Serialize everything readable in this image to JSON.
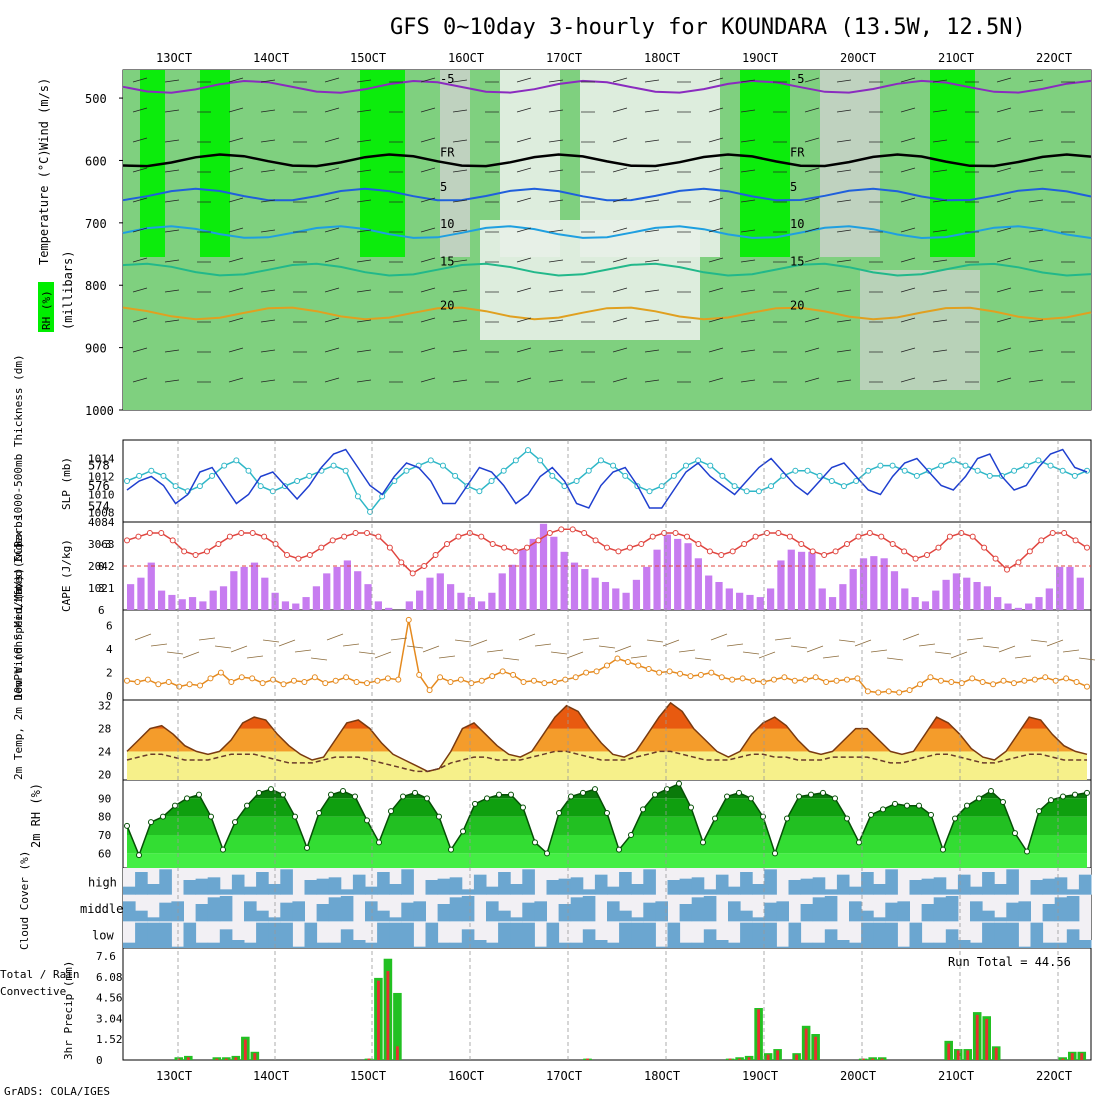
{
  "title": "GFS 0~10day 3-hourly for KOUNDARA (13.5W, 12.5N)",
  "footer": "GrADS: COLA/IGES",
  "colors": {
    "rh_dark": "#00ee00",
    "rh_mid": "#5fd05f",
    "rh_light": "#7fd07f",
    "rh_grey": "#c7d2c7",
    "rh_pale": "#e8efe8",
    "slp": "#1f3fcf",
    "thickness": "#2fb7c7",
    "cape": "#c77cf0",
    "lifted": "#e0453f",
    "wind": "#e58a1f",
    "barb": "#8b6a3a",
    "temp_hi": "#e85a10",
    "temp_mid": "#f6a830",
    "temp_lo": "#f6f08a",
    "rh2m_dark": "#0a8f0a",
    "rh2m_light": "#44ee44",
    "cloud": "#6ba6d0",
    "cloud_bg": "#f2f0f4",
    "precip_total": "#22c022",
    "precip_conv": "#e83030"
  },
  "chart_data": [
    {
      "panel": "upper-air",
      "type": "heatmap",
      "ylabel": "(millibars)",
      "y_ticks": [
        500,
        600,
        700,
        800,
        900,
        1000
      ],
      "x_ticks": [
        "13OCT",
        "14OCT",
        "15OCT",
        "16OCT",
        "17OCT",
        "18OCT",
        "19OCT",
        "20OCT",
        "21OCT",
        "22OCT"
      ],
      "legend_labels": [
        "RH (%)",
        "Temperature (°C)",
        "Wind (m/s)"
      ],
      "isotherms": [
        {
          "label": "-5",
          "pressure": 482
        },
        {
          "label": "FR",
          "pressure": 600
        },
        {
          "label": "5",
          "pressure": 655
        },
        {
          "label": "10",
          "pressure": 715
        },
        {
          "label": "15",
          "pressure": 775
        },
        {
          "label": "20",
          "pressure": 845
        }
      ]
    },
    {
      "panel": "slp-thickness",
      "type": "line",
      "ylabel_left": "1000-500mb Thickness (dm)",
      "ylabel_right": "SLP (mb)",
      "left_ticks": [
        574,
        576,
        578
      ],
      "right_ticks": [
        1008,
        1010,
        1012,
        1014
      ],
      "series": [
        {
          "name": "SLP",
          "values": [
            1010.5,
            1011.5,
            1012,
            1011,
            1009,
            1010,
            1012.5,
            1013,
            1011,
            1009,
            1010,
            1012,
            1012.5,
            1011,
            1009.5,
            1011,
            1013,
            1014.5,
            1015,
            1013,
            1011,
            1010,
            1012,
            1013.5,
            1013,
            1011.5,
            1009,
            1009,
            1011,
            1013,
            1012.5,
            1011,
            1009,
            1010,
            1012,
            1013,
            1011.5,
            1009,
            1008.5,
            1011,
            1012.5,
            1013,
            1011,
            1008.5,
            1008.5,
            1010.5,
            1012.5,
            1013.5,
            1012,
            1011,
            1010,
            1011.5,
            1013,
            1014,
            1012.5,
            1011,
            1010,
            1011.5,
            1013,
            1013.5,
            1012,
            1010.5,
            1010,
            1012,
            1013.5,
            1014,
            1012.5,
            1011,
            1010.5,
            1012,
            1014,
            1014.5,
            1012,
            1010.5,
            1011,
            1013,
            1014.5,
            1015,
            1013,
            1012.5
          ]
        },
        {
          "name": "Thickness",
          "values": [
            576.5,
            577,
            577.5,
            577,
            576,
            575.5,
            576,
            577,
            578,
            578.5,
            577.5,
            576,
            575.5,
            576,
            576.5,
            577,
            577.5,
            578,
            577.5,
            575,
            573.5,
            575,
            576.5,
            577.5,
            578,
            578.5,
            578,
            577,
            576,
            575.5,
            576.5,
            577.5,
            578.5,
            579.5,
            578.5,
            577,
            576,
            576.5,
            577.5,
            578.5,
            578,
            577,
            576,
            575.5,
            576,
            577,
            578,
            578.5,
            578,
            577,
            576,
            575.5,
            575.5,
            576,
            577,
            577.5,
            577.5,
            577,
            576.5,
            576,
            576.5,
            577.5,
            578,
            578,
            577.5,
            577,
            577.5,
            578,
            578.5,
            578,
            577.5,
            577,
            577,
            577.5,
            578,
            578.5,
            578,
            577.5,
            577,
            577.5
          ]
        }
      ]
    },
    {
      "panel": "cape-lifted",
      "type": "bar",
      "ylabel_left": "Lifted Index",
      "ylabel_right": "CAPE (J/kg)",
      "left_ticks": [
        -3,
        0,
        3,
        6
      ],
      "right_ticks": [
        1021,
        2042,
        3063,
        4084
      ],
      "series": [
        {
          "name": "CAPE",
          "values": [
            1200,
            1500,
            2200,
            900,
            700,
            500,
            600,
            400,
            900,
            1100,
            1800,
            2000,
            2200,
            1500,
            800,
            400,
            300,
            600,
            1100,
            1700,
            2000,
            2300,
            1800,
            1200,
            400,
            100,
            0,
            400,
            900,
            1500,
            1700,
            1200,
            800,
            600,
            400,
            800,
            1700,
            2100,
            2800,
            3300,
            4000,
            3400,
            2700,
            2200,
            1900,
            1500,
            1300,
            1000,
            800,
            1400,
            2000,
            2800,
            3500,
            3300,
            3100,
            2400,
            1600,
            1300,
            1000,
            800,
            700,
            600,
            1000,
            2300,
            2800,
            2700,
            2700,
            1000,
            600,
            1200,
            1900,
            2400,
            2500,
            2400,
            1800,
            1000,
            600,
            400,
            900,
            1400,
            1700,
            1500,
            1300,
            1100,
            600,
            300,
            100,
            300,
            600,
            1000,
            2000,
            2000,
            1500
          ]
        },
        {
          "name": "Lifted Index",
          "values": [
            -3.5,
            -4,
            -4.5,
            -4.5,
            -3.5,
            -2,
            -1.5,
            -2,
            -3,
            -4,
            -4.5,
            -4.5,
            -4,
            -3,
            -1.5,
            -1,
            -1.5,
            -2.5,
            -3.5,
            -4,
            -4.5,
            -4.5,
            -4,
            -2.5,
            -0.5,
            1,
            0,
            -1.5,
            -3,
            -4,
            -4.5,
            -4,
            -3,
            -2.5,
            -2,
            -2.5,
            -3.5,
            -4.5,
            -5,
            -5,
            -4.5,
            -3.5,
            -2.5,
            -2,
            -2.5,
            -3,
            -4,
            -4.5,
            -4.5,
            -4,
            -3,
            -2,
            -1.5,
            -2,
            -3,
            -4,
            -4.5,
            -4.5,
            -4,
            -3,
            -2,
            -1.5,
            -2,
            -3,
            -4,
            -4.5,
            -4,
            -3,
            -2,
            -1,
            -1.5,
            -2.5,
            -4,
            -4.5,
            -4,
            -2.5,
            -1,
            0.5,
            -0.5,
            -2,
            -3.5,
            -4.5,
            -4.5,
            -3.5,
            -2.5
          ]
        }
      ]
    },
    {
      "panel": "wind10m",
      "type": "line",
      "ylabel": "10m Wind Speed (m/s) & Barbs",
      "left_ticks": [
        0,
        2,
        4,
        6
      ],
      "series": [
        {
          "name": "Wind Speed",
          "values": [
            1.3,
            1.2,
            1.4,
            1.0,
            1.2,
            0.8,
            1.0,
            0.9,
            1.5,
            2.0,
            1.2,
            1.6,
            1.5,
            1.1,
            1.4,
            1.0,
            1.3,
            1.2,
            1.6,
            1.1,
            1.3,
            1.6,
            1.2,
            1.1,
            1.3,
            1.5,
            1.4,
            6.5,
            1.8,
            0.5,
            1.6,
            1.2,
            1.4,
            1.1,
            1.3,
            1.7,
            2.1,
            1.8,
            1.2,
            1.3,
            1.1,
            1.2,
            1.4,
            1.6,
            2.0,
            2.1,
            2.6,
            3.2,
            2.9,
            2.6,
            2.3,
            2.0,
            2.1,
            1.9,
            1.7,
            1.8,
            2.0,
            1.6,
            1.4,
            1.5,
            1.3,
            1.2,
            1.4,
            1.6,
            1.3,
            1.4,
            1.6,
            1.2,
            1.3,
            1.4,
            1.5,
            0.4,
            0.3,
            0.4,
            0.3,
            0.5,
            1.0,
            1.6,
            1.3,
            1.2,
            1.1,
            1.5,
            1.2,
            1.0,
            1.3,
            1.1,
            1.3,
            1.4,
            1.6,
            1.3,
            1.5,
            1.2,
            0.8
          ]
        }
      ]
    },
    {
      "panel": "temp-dewpt",
      "type": "area",
      "ylabel": "2m Temp, 2m DewPt (6hr Min/Max) (°C)",
      "left_ticks": [
        20,
        24,
        28,
        32
      ],
      "series": [
        {
          "name": "2m Temp",
          "values": [
            24,
            26,
            28,
            28.5,
            27,
            25,
            24,
            23.5,
            24,
            26,
            29,
            30,
            29.5,
            27,
            25,
            23.5,
            22.5,
            23,
            26,
            29,
            29.5,
            28,
            25.5,
            23.5,
            22.5,
            21.5,
            20.5,
            21,
            24,
            28,
            29,
            27,
            25,
            23.5,
            23,
            24,
            27,
            30,
            32,
            31,
            28,
            25.5,
            23.5,
            23,
            24,
            27,
            30,
            32.5,
            31,
            28,
            26,
            24,
            23,
            24,
            27,
            29,
            30,
            28.5,
            26,
            24,
            23.5,
            24,
            26,
            28,
            28,
            26,
            24,
            23.5,
            24,
            27,
            30,
            29,
            27,
            24.5,
            23,
            22.5,
            24,
            27,
            30,
            29.5,
            27,
            25,
            24,
            23.5
          ]
        },
        {
          "name": "2m DewPt",
          "values": [
            22.5,
            23,
            23.5,
            23.5,
            23,
            22.5,
            22.5,
            22.5,
            23,
            23.5,
            23.5,
            23.5,
            23,
            22.5,
            22,
            22,
            22,
            22.5,
            23,
            23,
            23,
            22.5,
            22,
            21.5,
            21,
            20.5,
            20.5,
            21,
            22,
            22.5,
            23,
            23,
            22.5,
            22.5,
            22.5,
            23,
            23.5,
            24,
            24,
            23.5,
            23,
            22.5,
            22.5,
            22.5,
            23,
            23.5,
            24,
            24,
            23.5,
            23,
            22.5,
            22.5,
            22.5,
            23,
            23.5,
            23.5,
            23,
            23,
            22.5,
            22.5,
            22.5,
            23,
            23,
            23,
            23,
            22.5,
            22,
            22,
            22.5,
            23,
            23.5,
            23.5,
            23,
            22.5,
            22,
            22,
            22.5,
            23,
            23.5,
            23.5,
            23,
            22.5,
            22.5,
            22.5
          ]
        }
      ]
    },
    {
      "panel": "rh2m",
      "type": "area",
      "ylabel": "2m RH (%)",
      "left_ticks": [
        60,
        70,
        80,
        90
      ],
      "series": [
        {
          "name": "2m RH",
          "values": [
            75,
            59,
            77,
            80,
            86,
            90,
            92,
            80,
            62,
            77,
            86,
            93,
            95,
            92,
            80,
            63,
            82,
            92,
            94,
            91,
            78,
            66,
            83,
            91,
            93,
            90,
            80,
            62,
            72,
            87,
            90,
            92,
            92,
            85,
            66,
            60,
            82,
            91,
            93,
            95,
            82,
            62,
            70,
            84,
            92,
            95,
            98,
            85,
            66,
            79,
            91,
            93,
            90,
            80,
            60,
            79,
            91,
            92,
            93,
            90,
            79,
            66,
            81,
            84,
            87,
            86,
            86,
            81,
            62,
            79,
            86,
            90,
            94,
            88,
            71,
            61,
            83,
            89,
            91,
            92,
            93
          ]
        }
      ]
    },
    {
      "panel": "cloud",
      "type": "area",
      "ylabel": "Cloud Cover (%)",
      "row_labels": [
        "high",
        "middle",
        "low"
      ]
    },
    {
      "panel": "precip",
      "type": "bar",
      "ylabel": "3hr Precip (mm)",
      "legend_labels": [
        "Total / Rain",
        "Convective"
      ],
      "left_ticks": [
        0,
        1.52,
        3.04,
        4.56,
        6.08,
        7.6
      ],
      "run_total_label": "Run Total = 44.56",
      "series": [
        {
          "name": "Total / Rain",
          "values": [
            0,
            0,
            0,
            0,
            0,
            0.2,
            0.3,
            0,
            0,
            0.2,
            0.2,
            0.3,
            1.7,
            0.6,
            0,
            0,
            0,
            0,
            0,
            0,
            0,
            0,
            0,
            0,
            0,
            0.1,
            6.0,
            7.4,
            4.9,
            0,
            0,
            0,
            0,
            0,
            0,
            0,
            0,
            0,
            0,
            0,
            0,
            0,
            0,
            0,
            0,
            0,
            0,
            0,
            0.1,
            0,
            0,
            0,
            0,
            0,
            0,
            0,
            0,
            0,
            0,
            0,
            0,
            0,
            0,
            0.1,
            0.2,
            0.3,
            3.8,
            0.5,
            0.8,
            0,
            0.5,
            2.5,
            1.9,
            0,
            0,
            0,
            0,
            0.1,
            0.2,
            0.2,
            0,
            0,
            0,
            0,
            0,
            0,
            1.4,
            0.8,
            0.8,
            3.5,
            3.2,
            1.0,
            0,
            0,
            0,
            0,
            0,
            0,
            0.2,
            0.6,
            0.6
          ]
        },
        {
          "name": "Convective",
          "values": [
            0,
            0,
            0,
            0,
            0,
            0.1,
            0.2,
            0,
            0,
            0.1,
            0.1,
            0.2,
            1.5,
            0.5,
            0,
            0,
            0,
            0,
            0,
            0,
            0,
            0,
            0,
            0,
            0,
            0.1,
            5.8,
            6.5,
            1.0,
            0,
            0,
            0,
            0,
            0,
            0,
            0,
            0,
            0,
            0,
            0,
            0,
            0,
            0,
            0,
            0,
            0,
            0,
            0,
            0.1,
            0,
            0,
            0,
            0,
            0,
            0,
            0,
            0,
            0,
            0,
            0,
            0,
            0,
            0,
            0.1,
            0.1,
            0.2,
            3.7,
            0.4,
            0.7,
            0,
            0.4,
            2.3,
            1.7,
            0,
            0,
            0,
            0,
            0.1,
            0.1,
            0.1,
            0,
            0,
            0,
            0,
            0,
            0,
            1.2,
            0.7,
            0.7,
            3.3,
            3.0,
            0.9,
            0,
            0,
            0,
            0,
            0,
            0,
            0.1,
            0.5,
            0.5
          ]
        }
      ]
    }
  ]
}
